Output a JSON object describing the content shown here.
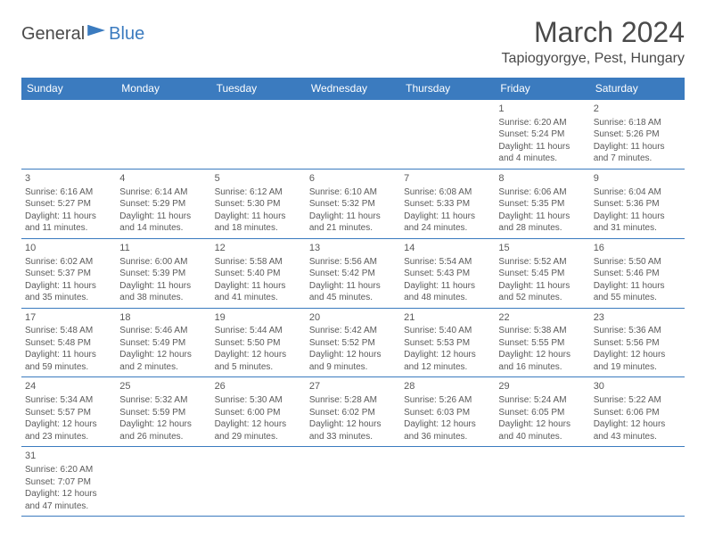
{
  "logo": {
    "general": "General",
    "blue": "Blue"
  },
  "title": "March 2024",
  "location": "Tapiogyorgye, Pest, Hungary",
  "colors": {
    "header_bg": "#3b7bbf",
    "header_text": "#ffffff",
    "border": "#3b7bbf",
    "text": "#5a5a5a",
    "title_text": "#4a4a4a",
    "page_bg": "#ffffff"
  },
  "dayHeaders": [
    "Sunday",
    "Monday",
    "Tuesday",
    "Wednesday",
    "Thursday",
    "Friday",
    "Saturday"
  ],
  "weeks": [
    [
      null,
      null,
      null,
      null,
      null,
      {
        "n": "1",
        "sr": "Sunrise: 6:20 AM",
        "ss": "Sunset: 5:24 PM",
        "d1": "Daylight: 11 hours",
        "d2": "and 4 minutes."
      },
      {
        "n": "2",
        "sr": "Sunrise: 6:18 AM",
        "ss": "Sunset: 5:26 PM",
        "d1": "Daylight: 11 hours",
        "d2": "and 7 minutes."
      }
    ],
    [
      {
        "n": "3",
        "sr": "Sunrise: 6:16 AM",
        "ss": "Sunset: 5:27 PM",
        "d1": "Daylight: 11 hours",
        "d2": "and 11 minutes."
      },
      {
        "n": "4",
        "sr": "Sunrise: 6:14 AM",
        "ss": "Sunset: 5:29 PM",
        "d1": "Daylight: 11 hours",
        "d2": "and 14 minutes."
      },
      {
        "n": "5",
        "sr": "Sunrise: 6:12 AM",
        "ss": "Sunset: 5:30 PM",
        "d1": "Daylight: 11 hours",
        "d2": "and 18 minutes."
      },
      {
        "n": "6",
        "sr": "Sunrise: 6:10 AM",
        "ss": "Sunset: 5:32 PM",
        "d1": "Daylight: 11 hours",
        "d2": "and 21 minutes."
      },
      {
        "n": "7",
        "sr": "Sunrise: 6:08 AM",
        "ss": "Sunset: 5:33 PM",
        "d1": "Daylight: 11 hours",
        "d2": "and 24 minutes."
      },
      {
        "n": "8",
        "sr": "Sunrise: 6:06 AM",
        "ss": "Sunset: 5:35 PM",
        "d1": "Daylight: 11 hours",
        "d2": "and 28 minutes."
      },
      {
        "n": "9",
        "sr": "Sunrise: 6:04 AM",
        "ss": "Sunset: 5:36 PM",
        "d1": "Daylight: 11 hours",
        "d2": "and 31 minutes."
      }
    ],
    [
      {
        "n": "10",
        "sr": "Sunrise: 6:02 AM",
        "ss": "Sunset: 5:37 PM",
        "d1": "Daylight: 11 hours",
        "d2": "and 35 minutes."
      },
      {
        "n": "11",
        "sr": "Sunrise: 6:00 AM",
        "ss": "Sunset: 5:39 PM",
        "d1": "Daylight: 11 hours",
        "d2": "and 38 minutes."
      },
      {
        "n": "12",
        "sr": "Sunrise: 5:58 AM",
        "ss": "Sunset: 5:40 PM",
        "d1": "Daylight: 11 hours",
        "d2": "and 41 minutes."
      },
      {
        "n": "13",
        "sr": "Sunrise: 5:56 AM",
        "ss": "Sunset: 5:42 PM",
        "d1": "Daylight: 11 hours",
        "d2": "and 45 minutes."
      },
      {
        "n": "14",
        "sr": "Sunrise: 5:54 AM",
        "ss": "Sunset: 5:43 PM",
        "d1": "Daylight: 11 hours",
        "d2": "and 48 minutes."
      },
      {
        "n": "15",
        "sr": "Sunrise: 5:52 AM",
        "ss": "Sunset: 5:45 PM",
        "d1": "Daylight: 11 hours",
        "d2": "and 52 minutes."
      },
      {
        "n": "16",
        "sr": "Sunrise: 5:50 AM",
        "ss": "Sunset: 5:46 PM",
        "d1": "Daylight: 11 hours",
        "d2": "and 55 minutes."
      }
    ],
    [
      {
        "n": "17",
        "sr": "Sunrise: 5:48 AM",
        "ss": "Sunset: 5:48 PM",
        "d1": "Daylight: 11 hours",
        "d2": "and 59 minutes."
      },
      {
        "n": "18",
        "sr": "Sunrise: 5:46 AM",
        "ss": "Sunset: 5:49 PM",
        "d1": "Daylight: 12 hours",
        "d2": "and 2 minutes."
      },
      {
        "n": "19",
        "sr": "Sunrise: 5:44 AM",
        "ss": "Sunset: 5:50 PM",
        "d1": "Daylight: 12 hours",
        "d2": "and 5 minutes."
      },
      {
        "n": "20",
        "sr": "Sunrise: 5:42 AM",
        "ss": "Sunset: 5:52 PM",
        "d1": "Daylight: 12 hours",
        "d2": "and 9 minutes."
      },
      {
        "n": "21",
        "sr": "Sunrise: 5:40 AM",
        "ss": "Sunset: 5:53 PM",
        "d1": "Daylight: 12 hours",
        "d2": "and 12 minutes."
      },
      {
        "n": "22",
        "sr": "Sunrise: 5:38 AM",
        "ss": "Sunset: 5:55 PM",
        "d1": "Daylight: 12 hours",
        "d2": "and 16 minutes."
      },
      {
        "n": "23",
        "sr": "Sunrise: 5:36 AM",
        "ss": "Sunset: 5:56 PM",
        "d1": "Daylight: 12 hours",
        "d2": "and 19 minutes."
      }
    ],
    [
      {
        "n": "24",
        "sr": "Sunrise: 5:34 AM",
        "ss": "Sunset: 5:57 PM",
        "d1": "Daylight: 12 hours",
        "d2": "and 23 minutes."
      },
      {
        "n": "25",
        "sr": "Sunrise: 5:32 AM",
        "ss": "Sunset: 5:59 PM",
        "d1": "Daylight: 12 hours",
        "d2": "and 26 minutes."
      },
      {
        "n": "26",
        "sr": "Sunrise: 5:30 AM",
        "ss": "Sunset: 6:00 PM",
        "d1": "Daylight: 12 hours",
        "d2": "and 29 minutes."
      },
      {
        "n": "27",
        "sr": "Sunrise: 5:28 AM",
        "ss": "Sunset: 6:02 PM",
        "d1": "Daylight: 12 hours",
        "d2": "and 33 minutes."
      },
      {
        "n": "28",
        "sr": "Sunrise: 5:26 AM",
        "ss": "Sunset: 6:03 PM",
        "d1": "Daylight: 12 hours",
        "d2": "and 36 minutes."
      },
      {
        "n": "29",
        "sr": "Sunrise: 5:24 AM",
        "ss": "Sunset: 6:05 PM",
        "d1": "Daylight: 12 hours",
        "d2": "and 40 minutes."
      },
      {
        "n": "30",
        "sr": "Sunrise: 5:22 AM",
        "ss": "Sunset: 6:06 PM",
        "d1": "Daylight: 12 hours",
        "d2": "and 43 minutes."
      }
    ],
    [
      {
        "n": "31",
        "sr": "Sunrise: 6:20 AM",
        "ss": "Sunset: 7:07 PM",
        "d1": "Daylight: 12 hours",
        "d2": "and 47 minutes."
      },
      null,
      null,
      null,
      null,
      null,
      null
    ]
  ]
}
